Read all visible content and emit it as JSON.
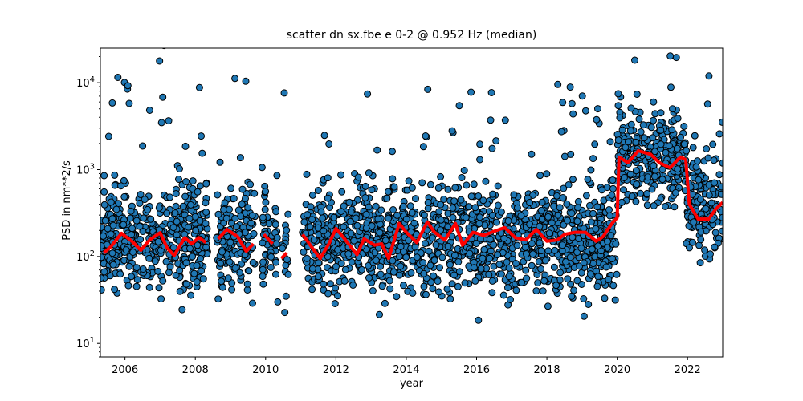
{
  "chart_data": {
    "type": "scatter",
    "title": "scatter dn sx.fbe e 0-2 @ 0.952 Hz (median)",
    "xlabel": "year",
    "ylabel": "PSD in nm**2/s",
    "xlim": [
      2005.3,
      2023.0
    ],
    "ylim": [
      7,
      25000
    ],
    "yscale": "log",
    "grid": false,
    "x_ticks": [
      2006,
      2008,
      2010,
      2012,
      2014,
      2016,
      2018,
      2020,
      2022
    ],
    "x_tick_labels": [
      "2006",
      "2008",
      "2010",
      "2012",
      "2014",
      "2016",
      "2018",
      "2020",
      "2022"
    ],
    "y_ticks": [
      10,
      100,
      1000,
      10000
    ],
    "y_tick_labels": [
      "10^1",
      "10^2",
      "10^3",
      "10^4"
    ],
    "data_gaps": [
      [
        2008.35,
        2008.6
      ],
      [
        2009.7,
        2009.9
      ],
      [
        2010.35,
        2010.45
      ],
      [
        2010.65,
        2011.05
      ]
    ],
    "series": [
      {
        "kind": "scatter",
        "color": "#1f77b4",
        "edgecolor": "#000000",
        "bands": [
          {
            "x_range": [
              2005.3,
              2020.0
            ],
            "median": 160,
            "spread_decades": 0.3
          },
          {
            "x_range": [
              2020.0,
              2021.95
            ],
            "median": 1300,
            "spread_decades": 0.25
          },
          {
            "x_range": [
              2021.95,
              2023.0
            ],
            "median": 400,
            "spread_decades": 0.3
          }
        ]
      },
      {
        "kind": "line",
        "color": "#ff0000",
        "x": [
          2005.4,
          2005.6,
          2005.9,
          2006.2,
          2006.45,
          2006.7,
          2007.0,
          2007.2,
          2007.4,
          2007.7,
          2007.9,
          2008.1,
          2008.3,
          2008.65,
          2008.9,
          2009.2,
          2009.45,
          2009.65,
          2009.95,
          2010.2,
          2010.45,
          2010.6,
          2011.05,
          2011.3,
          2011.55,
          2011.8,
          2012.0,
          2012.3,
          2012.6,
          2012.8,
          2013.1,
          2013.3,
          2013.5,
          2013.8,
          2014.0,
          2014.3,
          2014.6,
          2014.8,
          2015.1,
          2015.4,
          2015.6,
          2015.9,
          2016.2,
          2016.5,
          2016.8,
          2017.1,
          2017.4,
          2017.7,
          2018.0,
          2018.3,
          2018.5,
          2018.8,
          2019.1,
          2019.4,
          2019.6,
          2019.85,
          2020.0,
          2020.05,
          2020.3,
          2020.6,
          2020.95,
          2021.2,
          2021.5,
          2021.8,
          2021.95,
          2022.05,
          2022.3,
          2022.6,
          2022.8,
          2023.0
        ],
        "y": [
          110,
          130,
          185,
          150,
          118,
          155,
          188,
          125,
          103,
          165,
          140,
          165,
          145,
          160,
          205,
          170,
          115,
          140,
          180,
          140,
          95,
          110,
          180,
          130,
          95,
          140,
          210,
          150,
          105,
          160,
          135,
          140,
          95,
          240,
          190,
          145,
          250,
          190,
          155,
          240,
          135,
          190,
          175,
          195,
          215,
          165,
          155,
          205,
          150,
          155,
          180,
          190,
          190,
          150,
          170,
          240,
          280,
          1400,
          1200,
          1650,
          1500,
          1200,
          1050,
          1400,
          1300,
          400,
          270,
          270,
          350,
          420
        ]
      }
    ]
  }
}
